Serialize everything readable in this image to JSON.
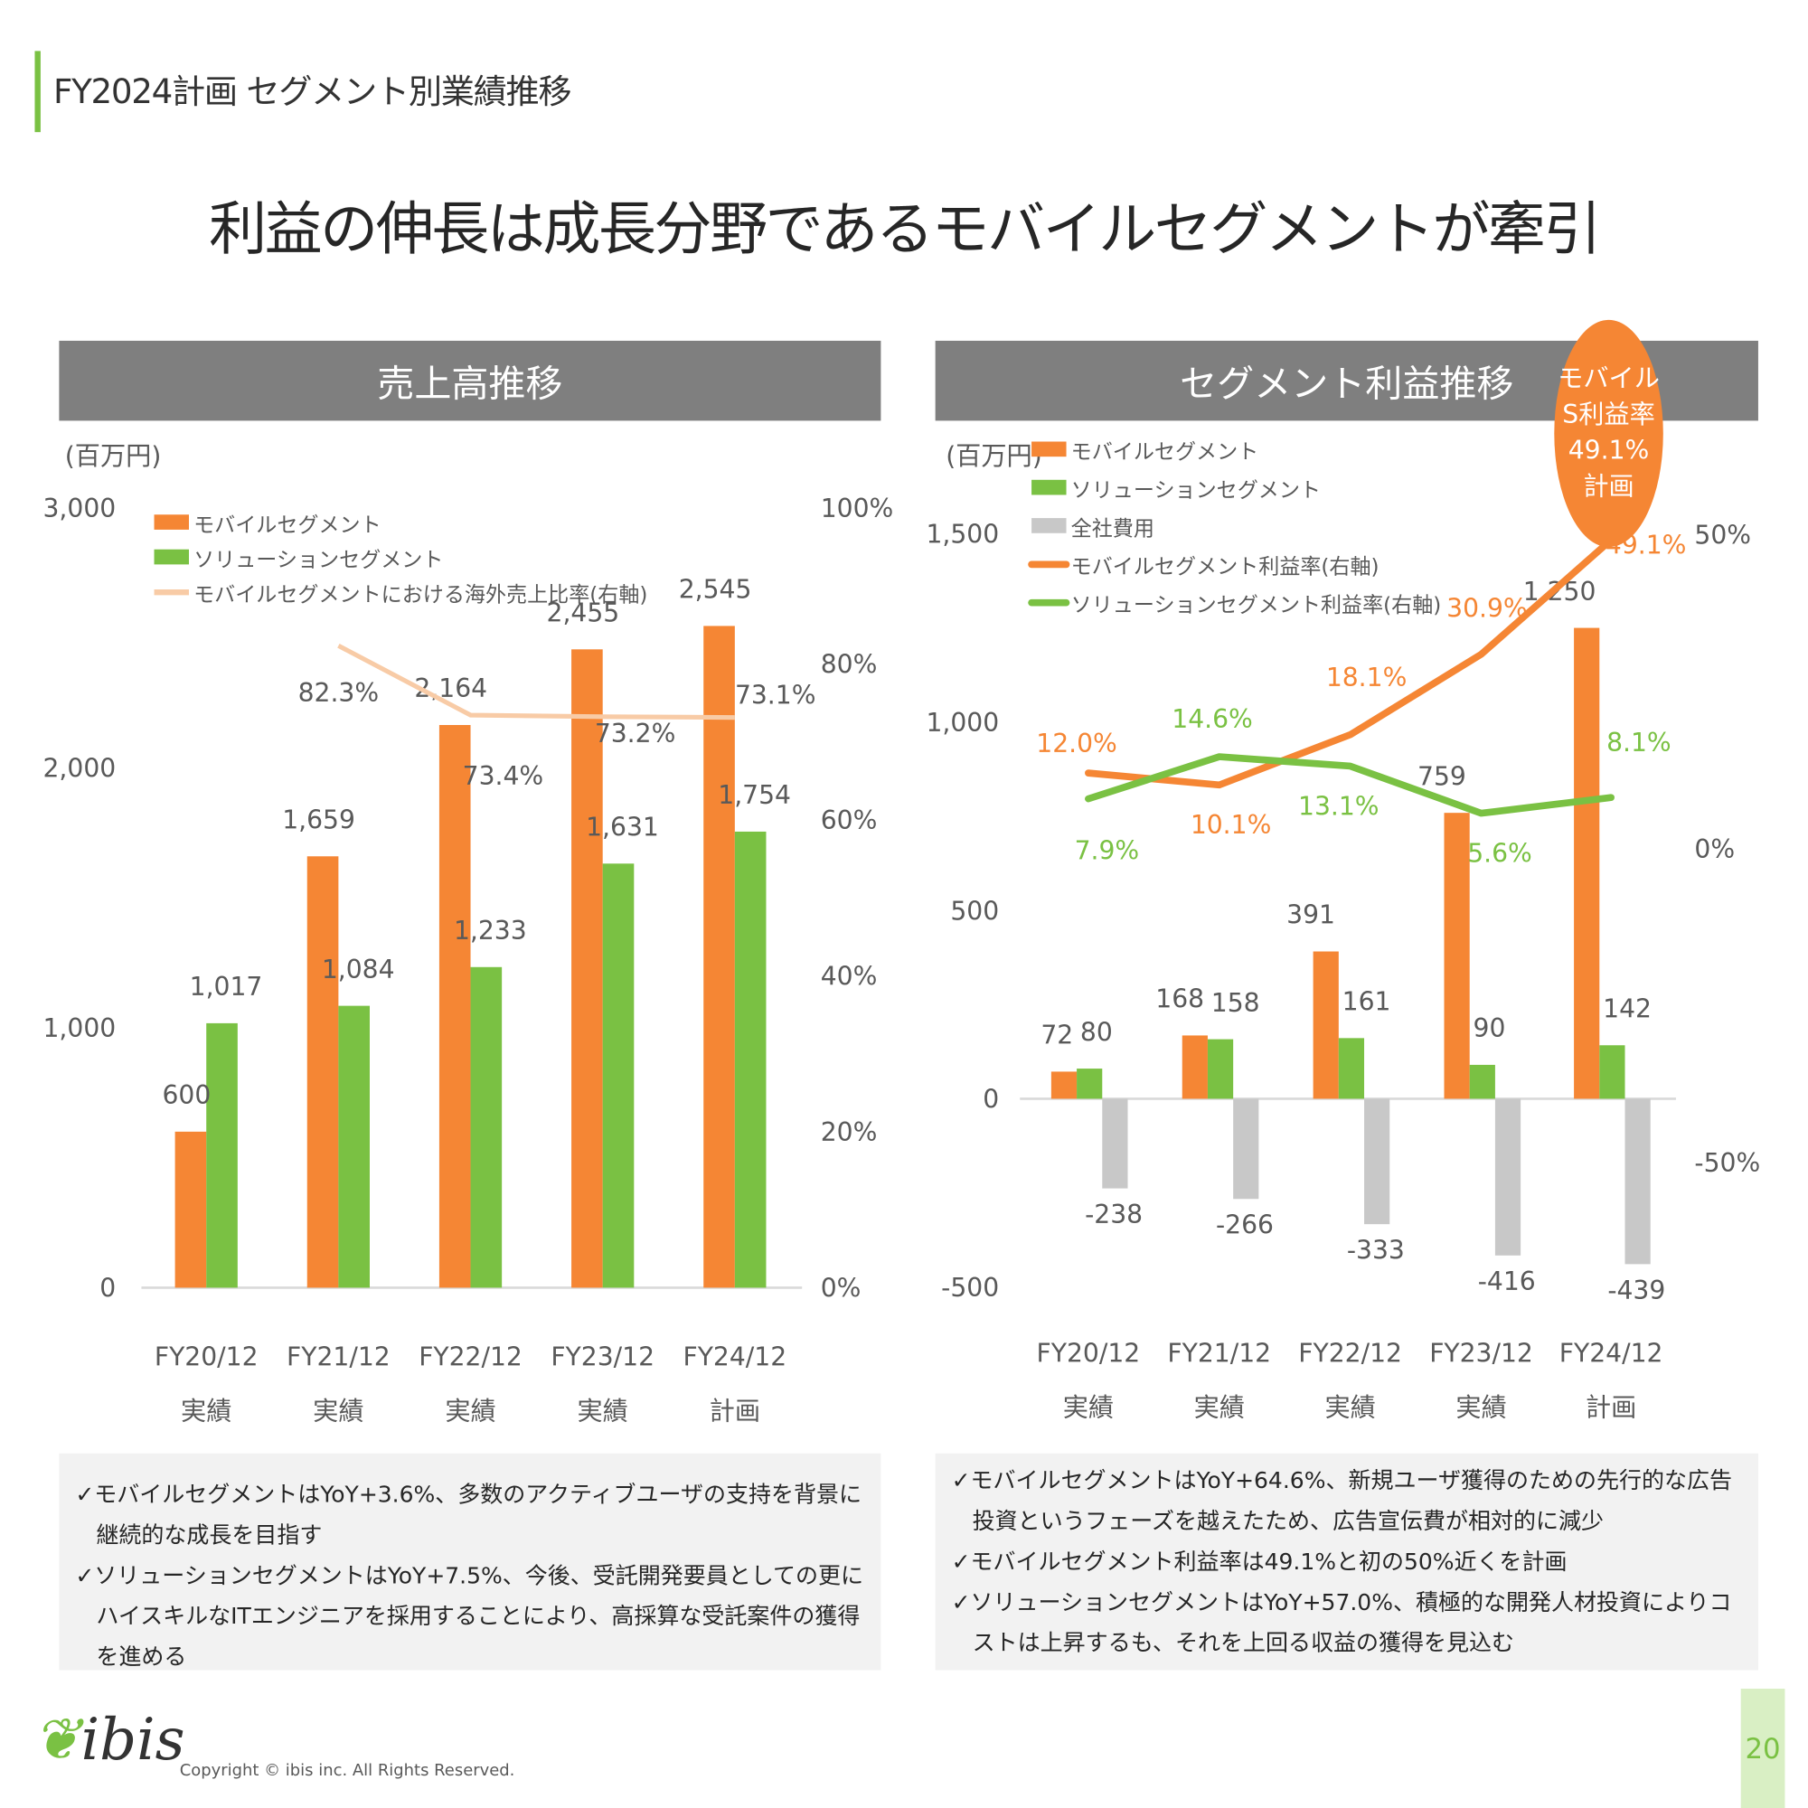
{
  "page_title": "FY2024計画 セグメント別業績推移",
  "headline": "利益の伸長は成長分野であるモバイルセグメントが牽引",
  "badge": [
    "モバイル",
    "S利益率",
    "49.1%",
    "計画"
  ],
  "colors": {
    "mobile": "#f58634",
    "solution": "#7ac143",
    "cost": "#c8c8c8",
    "overseas": "#f8cba6",
    "axis": "#d9d9d9"
  },
  "chart_data": [
    {
      "type": "bar",
      "title": "売上高推移",
      "unit": "(百万円)",
      "categories": [
        "FY20/12",
        "FY21/12",
        "FY22/12",
        "FY23/12",
        "FY24/12"
      ],
      "subcategories": [
        "実績",
        "実績",
        "実績",
        "実績",
        "計画"
      ],
      "ylim": [
        0,
        3000
      ],
      "yticks": [
        "0",
        "1,000",
        "2,000",
        "3,000"
      ],
      "y2lim": [
        0,
        100
      ],
      "y2ticks": [
        "0%",
        "20%",
        "40%",
        "60%",
        "80%",
        "100%"
      ],
      "series": [
        {
          "name": "モバイルセグメント",
          "values": [
            600,
            1659,
            2164,
            2455,
            2545
          ],
          "labels": [
            "600",
            "1,659",
            "2,164",
            "2,455",
            "2,545"
          ]
        },
        {
          "name": "ソリューションセグメント",
          "values": [
            1017,
            1084,
            1233,
            1631,
            1754
          ],
          "labels": [
            "1,017",
            "1,084",
            "1,233",
            "1,631",
            "1,754"
          ]
        },
        {
          "name": "モバイルセグメントにおける海外売上比率(右軸)",
          "type": "line",
          "axis": "right",
          "values": [
            null,
            82.3,
            73.4,
            73.2,
            73.1
          ],
          "labels": [
            "",
            "82.3%",
            "73.4%",
            "73.2%",
            "73.1%"
          ]
        }
      ]
    },
    {
      "type": "bar",
      "title": "セグメント利益推移",
      "unit": "(百万円)",
      "categories": [
        "FY20/12",
        "FY21/12",
        "FY22/12",
        "FY23/12",
        "FY24/12"
      ],
      "subcategories": [
        "実績",
        "実績",
        "実績",
        "実績",
        "計画"
      ],
      "ylim": [
        -500,
        1500
      ],
      "yticks": [
        "-500",
        "0",
        "500",
        "1,000",
        "1,500"
      ],
      "y2lim": [
        -50,
        50
      ],
      "y2ticks": [
        "-50%",
        "0%",
        "50%"
      ],
      "series": [
        {
          "name": "モバイルセグメント",
          "values": [
            72,
            168,
            391,
            759,
            1250
          ],
          "labels": [
            "72",
            "168",
            "391",
            "759",
            "1,250"
          ]
        },
        {
          "name": "ソリューションセグメント",
          "values": [
            80,
            158,
            161,
            90,
            142
          ],
          "labels": [
            "80",
            "158",
            "161",
            "90",
            "142"
          ]
        },
        {
          "name": "全社費用",
          "values": [
            -238,
            -266,
            -333,
            -416,
            -439
          ],
          "labels": [
            "-238",
            "-266",
            "-333",
            "-416",
            "-439"
          ]
        },
        {
          "name": "モバイルセグメント利益率(右軸)",
          "type": "line",
          "axis": "right",
          "values": [
            12.0,
            10.1,
            18.1,
            30.9,
            49.1
          ],
          "labels": [
            "12.0%",
            "10.1%",
            "18.1%",
            "30.9%",
            "49.1%"
          ]
        },
        {
          "name": "ソリューションセグメント利益率(右軸)",
          "type": "line",
          "axis": "right",
          "values": [
            7.9,
            14.6,
            13.1,
            5.6,
            8.1
          ],
          "labels": [
            "7.9%",
            "14.6%",
            "13.1%",
            "5.6%",
            "8.1%"
          ]
        }
      ]
    }
  ],
  "notes_left": [
    "✓モバイルセグメントはYoY+3.6%、多数のアクティブユーザの支持を背景に継続的な成長を目指す",
    "✓ソリューションセグメントはYoY+7.5%、今後、受託開発要員としての更にハイスキルなITエンジニアを採用することにより、高採算な受託案件の獲得を進める"
  ],
  "notes_right": [
    "✓モバイルセグメントはYoY+64.6%、新規ユーザ獲得のための先行的な広告投資というフェーズを越えたため、広告宣伝費が相対的に減少",
    "✓モバイルセグメント利益率は49.1%と初の50%近くを計画",
    "✓ソリューションセグメントはYoY+57.0%、積極的な開発人材投資によりコストは上昇するも、それを上回る収益の獲得を見込む"
  ],
  "footer": {
    "logo": "ibis",
    "copyright": "Copyright © ibis inc. All Rights Reserved.",
    "page": "20"
  }
}
